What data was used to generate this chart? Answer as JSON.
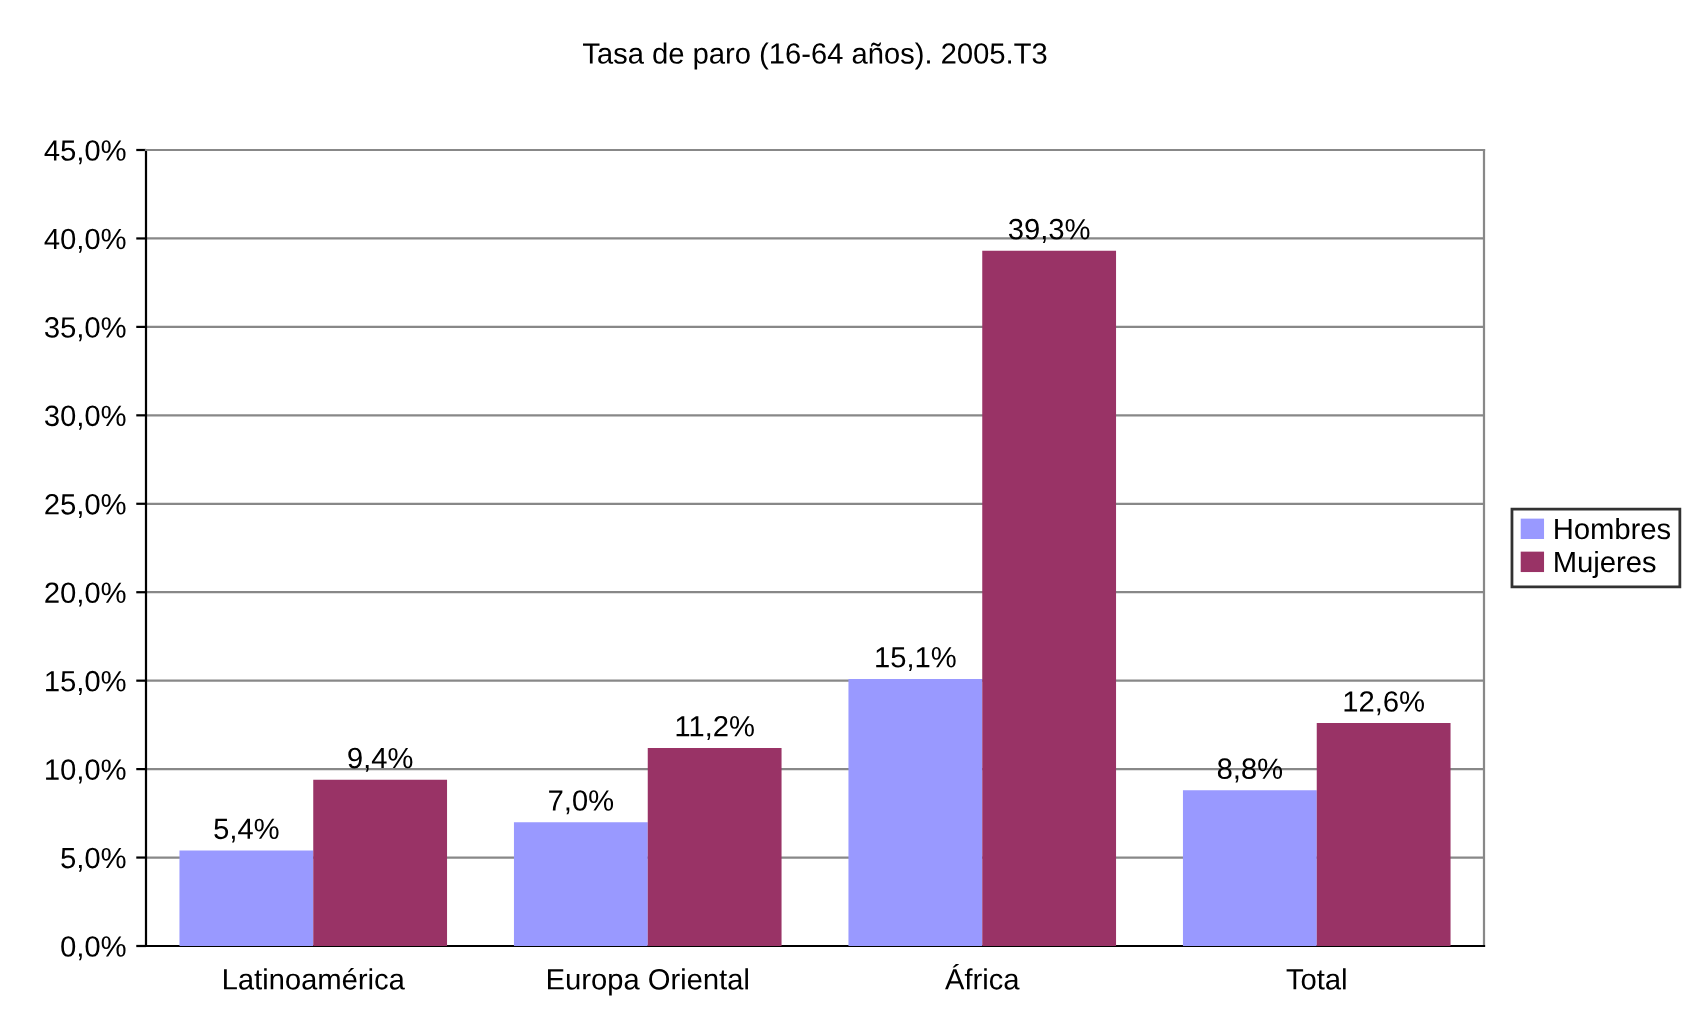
{
  "chart_data": {
    "type": "bar",
    "title": "Tasa de paro (16-64 años). 2005.T3",
    "categories": [
      "Latinoamérica",
      "Europa Oriental",
      "África",
      "Total"
    ],
    "series": [
      {
        "name": "Hombres",
        "color": "#9999ff",
        "values": [
          5.4,
          7.0,
          15.1,
          8.8
        ],
        "value_labels": [
          "5,4%",
          "7,0%",
          "15,1%",
          "8,8%"
        ]
      },
      {
        "name": "Mujeres",
        "color": "#993366",
        "values": [
          9.4,
          11.2,
          39.3,
          12.6
        ],
        "value_labels": [
          "9,4%",
          "11,2%",
          "39,3%",
          "12,6%"
        ]
      }
    ],
    "ylim": [
      0,
      45
    ],
    "yticks": [
      {
        "value": 0,
        "label": "0,0%"
      },
      {
        "value": 5,
        "label": "5,0%"
      },
      {
        "value": 10,
        "label": "10,0%"
      },
      {
        "value": 15,
        "label": "15,0%"
      },
      {
        "value": 20,
        "label": "20,0%"
      },
      {
        "value": 25,
        "label": "25,0%"
      },
      {
        "value": 30,
        "label": "30,0%"
      },
      {
        "value": 35,
        "label": "35,0%"
      },
      {
        "value": 40,
        "label": "40,0%"
      },
      {
        "value": 45,
        "label": "45,0%"
      }
    ],
    "grid": "y",
    "legend": "right"
  }
}
